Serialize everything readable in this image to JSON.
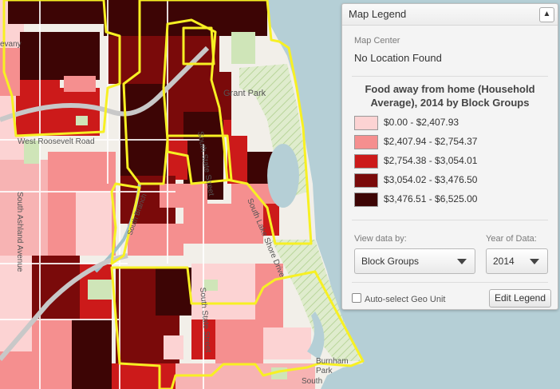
{
  "legend": {
    "title": "Map Legend",
    "collapse_icon": "chevron-up-icon",
    "map_center_label": "Map Center",
    "map_center_value": "No Location Found",
    "data_title": "Food away from home (Household Average), 2014 by Block Groups",
    "items": [
      {
        "label": "$0.00 - $2,407.93",
        "color": "#fcd3d3"
      },
      {
        "label": "$2,407.94 - $2,754.37",
        "color": "#f58f8f"
      },
      {
        "label": "$2,754.38 - $3,054.01",
        "color": "#cc1a1a"
      },
      {
        "label": "$3,054.02 - $3,476.50",
        "color": "#7a0a0a"
      },
      {
        "label": "$3,476.51 - $6,525.00",
        "color": "#3d0505"
      }
    ],
    "view_by_label": "View data by:",
    "view_by_value": "Block Groups",
    "year_label": "Year of Data:",
    "year_value": "2014",
    "auto_select_label": "Auto-select Geo Unit",
    "edit_button": "Edit Legend"
  },
  "map": {
    "labels": {
      "grant_park": "Grant Park",
      "roosevelt": "West Roosevelt Road",
      "ashland": "South Ashland Avenue",
      "state_1": "South State Street",
      "state_2": "South State Street",
      "lake_shore": "South Lake Shore Drive",
      "burnham_1": "Burnham",
      "burnham_2": "Park",
      "branch": "South Branch",
      "frag_top": "evany",
      "frag_bottom": "South"
    },
    "colors": {
      "water": "#b5cfd6",
      "land": "#f2efe9",
      "park": "#cfe5b8",
      "boundary": "#f7f023"
    }
  }
}
